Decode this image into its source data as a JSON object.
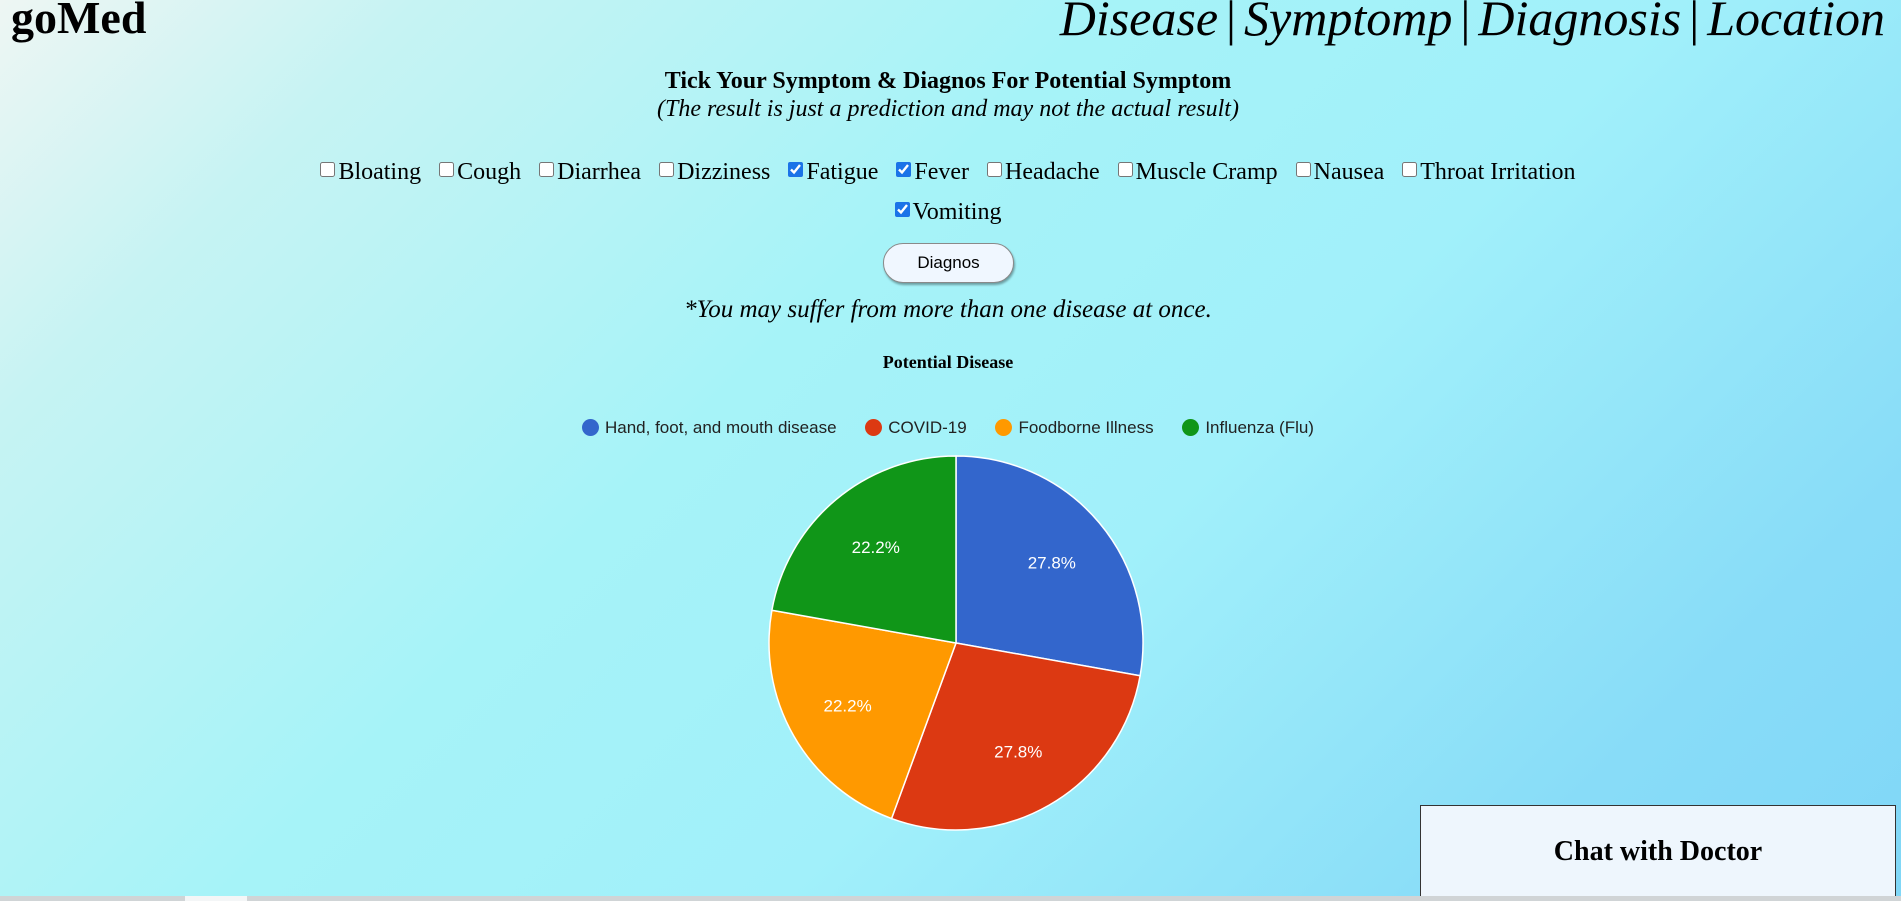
{
  "header": {
    "brand": "goMed",
    "nav": [
      {
        "label": "Disease"
      },
      {
        "label": "Symptomp"
      },
      {
        "label": "Diagnosis"
      },
      {
        "label": "Location"
      }
    ],
    "separator": "|"
  },
  "form": {
    "heading": "Tick Your Symptom & Diagnos For Potential Symptom",
    "subheading": "(The result is just a prediction and may not the actual result)",
    "symptoms": [
      {
        "label": "Bloating",
        "checked": false
      },
      {
        "label": "Cough",
        "checked": false
      },
      {
        "label": "Diarrhea",
        "checked": false
      },
      {
        "label": "Dizziness",
        "checked": false
      },
      {
        "label": "Fatigue",
        "checked": true
      },
      {
        "label": "Fever",
        "checked": true
      },
      {
        "label": "Headache",
        "checked": false
      },
      {
        "label": "Muscle Cramp",
        "checked": false
      },
      {
        "label": "Nausea",
        "checked": false
      },
      {
        "label": "Throat Irritation",
        "checked": false
      },
      {
        "label": "Vomiting",
        "checked": true
      }
    ],
    "button_label": "Diagnos",
    "note": "*You may suffer from more than one disease at once."
  },
  "chart_data": {
    "type": "pie",
    "title": "Potential Disease",
    "legend_position": "top",
    "series": [
      {
        "name": "Hand, foot, and mouth disease",
        "value": 27.8,
        "label": "27.8%",
        "color": "#3366cc"
      },
      {
        "name": "COVID-19",
        "value": 27.8,
        "label": "27.8%",
        "color": "#dc3912"
      },
      {
        "name": "Foodborne Illness",
        "value": 22.2,
        "label": "22.2%",
        "color": "#ff9900"
      },
      {
        "name": "Influenza (Flu)",
        "value": 22.2,
        "label": "22.2%",
        "color": "#109618"
      }
    ]
  },
  "chat": {
    "label": "Chat with Doctor"
  }
}
